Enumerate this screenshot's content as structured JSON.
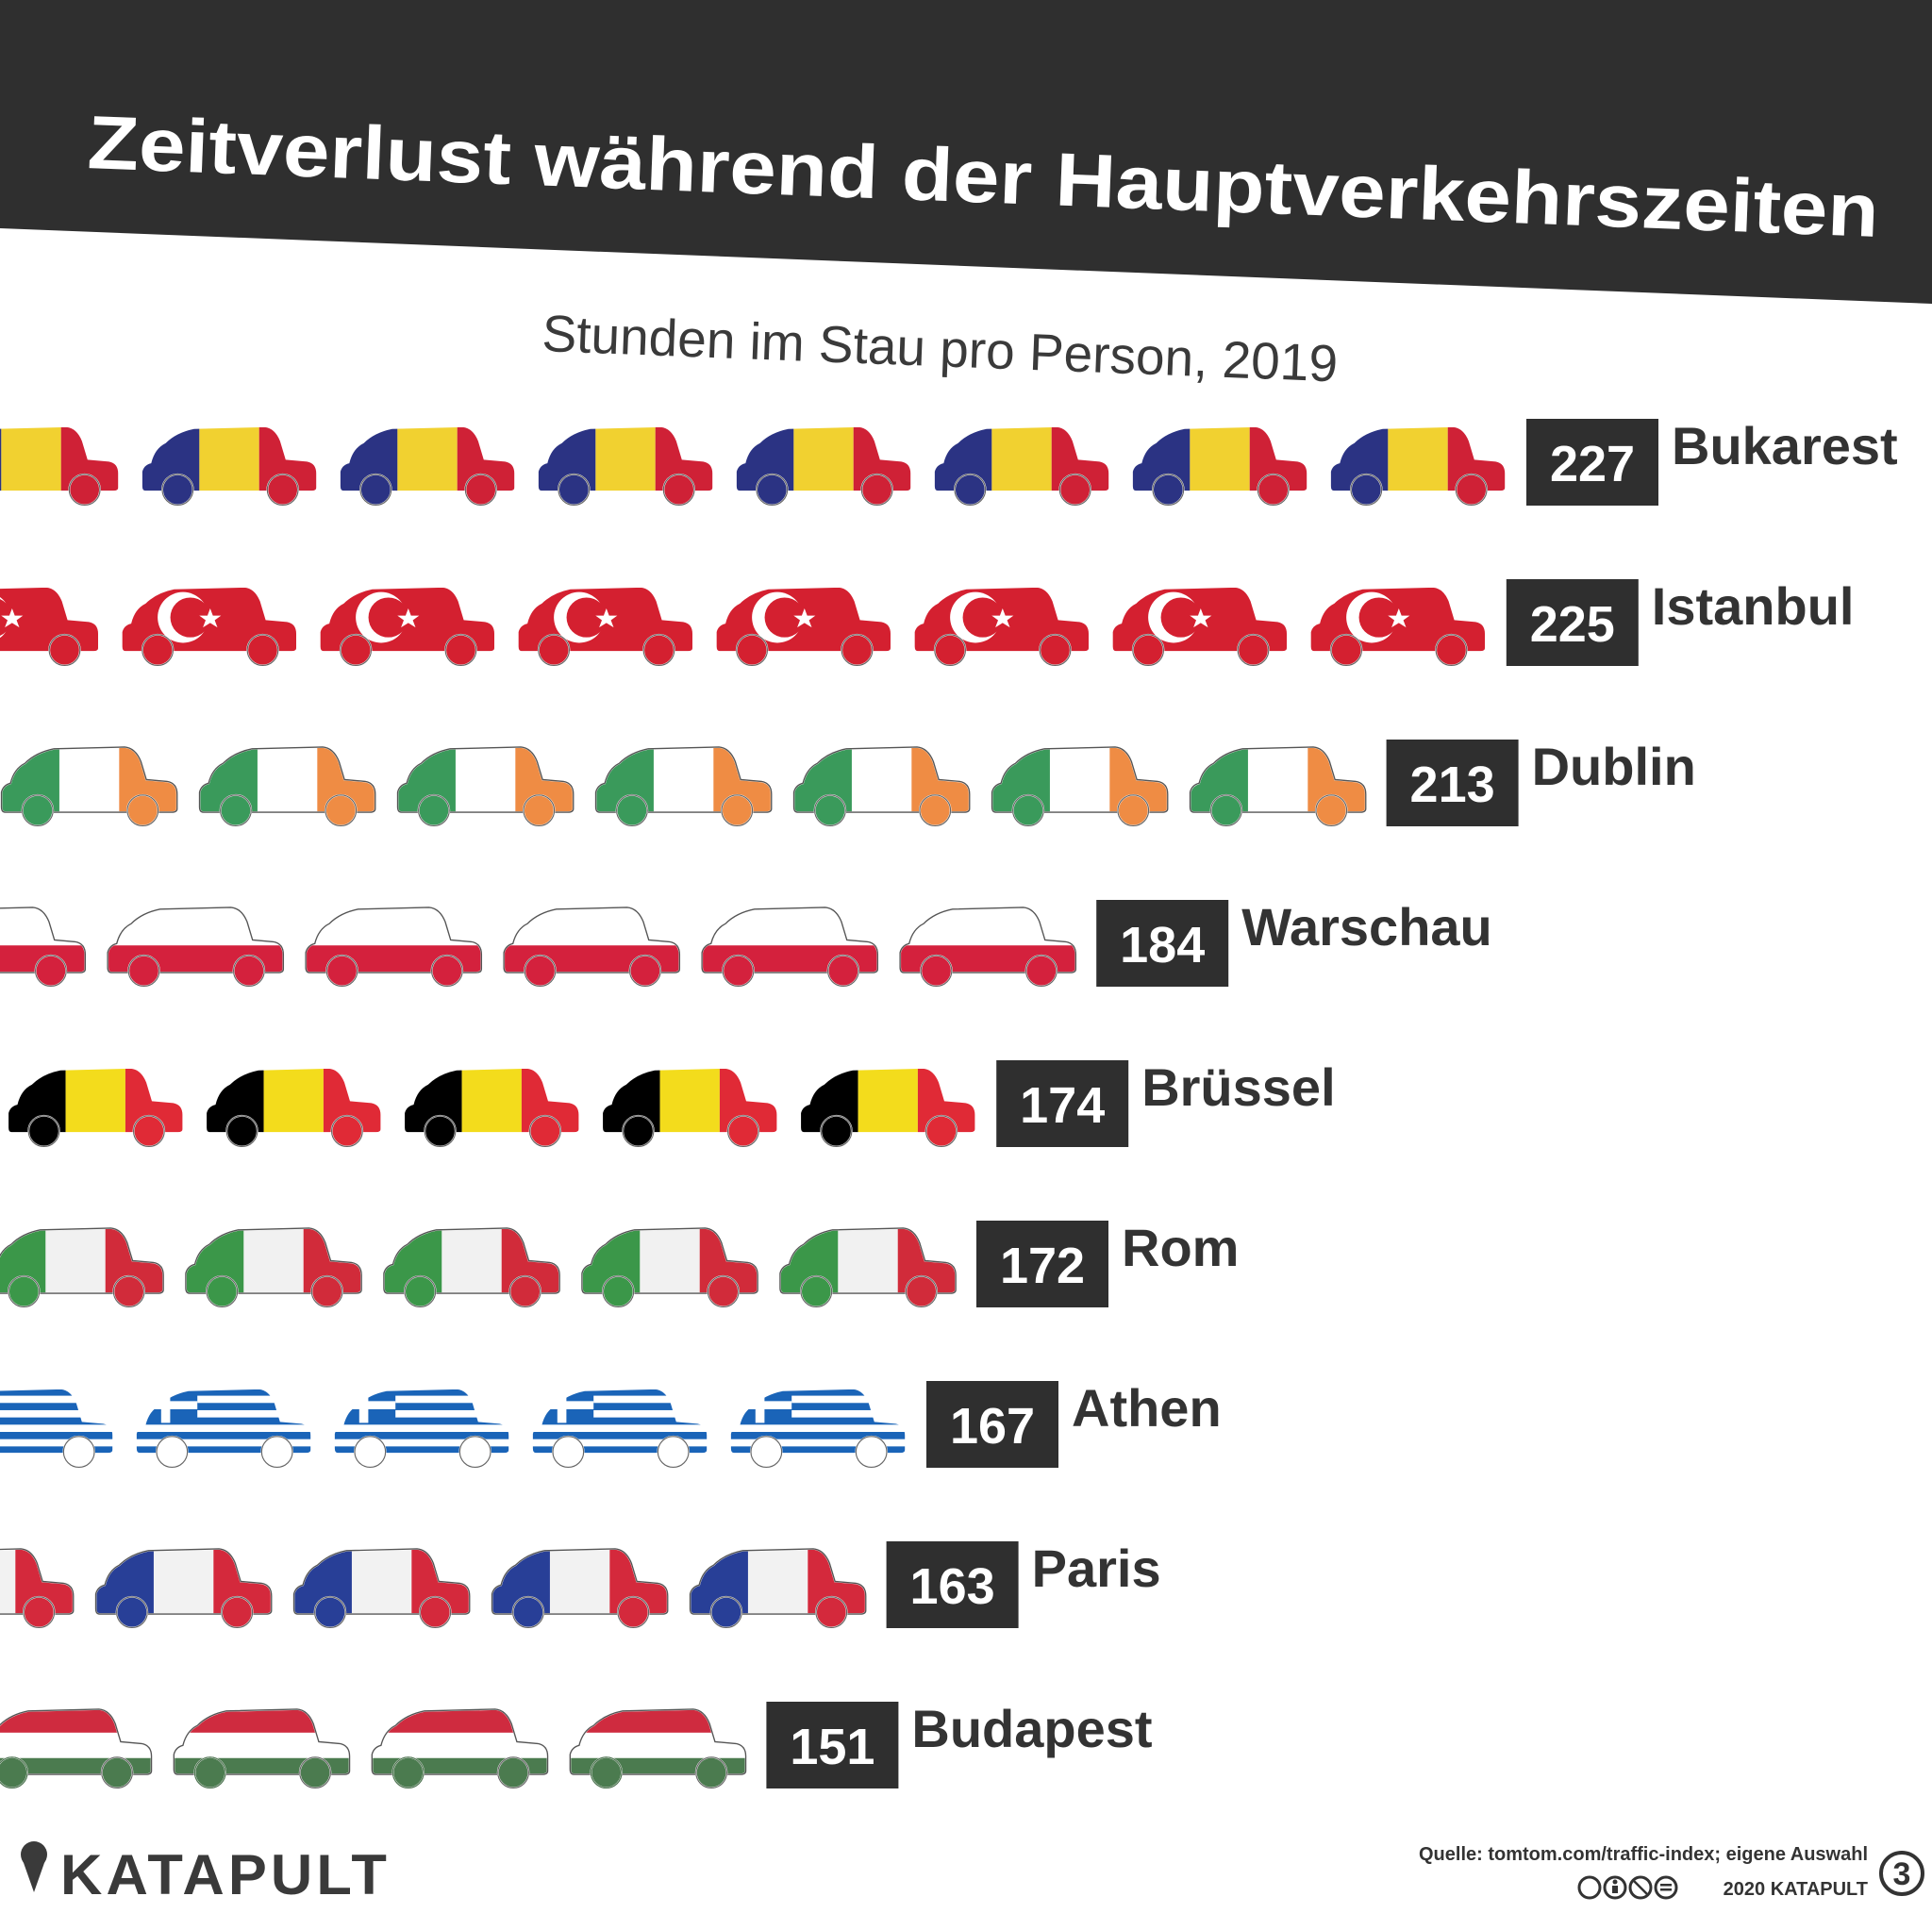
{
  "header": {
    "title": "Zeitverlust während der Hauptverkehrszeiten",
    "subtitle": "Stunden im Stau pro Person, 2019"
  },
  "chart_data": {
    "type": "bar",
    "title": "Zeitverlust während der Hauptverkehrszeiten",
    "subtitle": "Stunden im Stau pro Person, 2019",
    "xlabel": "",
    "ylabel": "Stunden im Stau pro Person",
    "categories": [
      "Bukarest",
      "Istanbul",
      "Dublin",
      "Warschau",
      "Brüssel",
      "Rom",
      "Athen",
      "Paris",
      "Budapest"
    ],
    "values": [
      227,
      225,
      213,
      184,
      174,
      172,
      167,
      163,
      151
    ],
    "flags": [
      "romania",
      "turkey",
      "ireland",
      "poland",
      "belgium",
      "italy",
      "greece",
      "france",
      "hungary"
    ]
  },
  "footer": {
    "brand": "KATAPULT",
    "source": "Quelle: tomtom.com/traffic-index; eigene Auswahl",
    "copyright": "2020 KATAPULT",
    "page_number": "3",
    "license_icons": [
      "cc-icon",
      "by-icon",
      "nc-icon",
      "nd-icon"
    ]
  },
  "colors": {
    "header_bg": "#2f2f2f",
    "label_bg": "#2f2f2f",
    "text": "#333333",
    "ro_blue": "#2b3383",
    "ro_yellow": "#f1d130",
    "ro_red": "#cf2136",
    "tr_red": "#d42030",
    "ie_green": "#3a9a5b",
    "ie_orange": "#ef8c44",
    "pl_red": "#d4213d",
    "be_black": "#000000",
    "be_yellow": "#f3dc1c",
    "be_red": "#e02a36",
    "it_green": "#3b9749",
    "it_white": "#f1f1f1",
    "it_red": "#d12b3a",
    "gr_blue": "#1a64b8",
    "fr_blue": "#283f97",
    "fr_white": "#f2f2f2",
    "fr_red": "#d4293c",
    "hu_red": "#cf2b3f",
    "hu_green": "#4b7b4f"
  }
}
